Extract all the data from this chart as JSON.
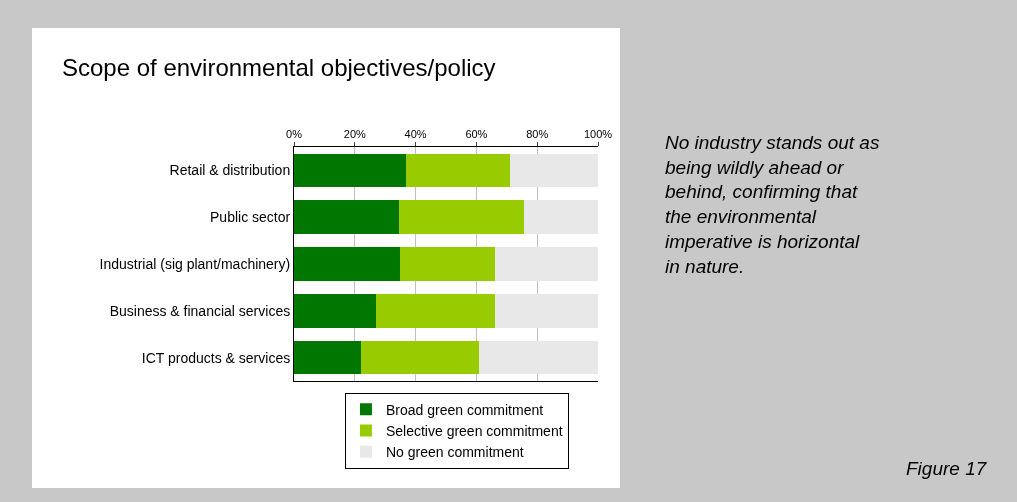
{
  "chart_data": {
    "type": "bar",
    "orientation": "horizontal",
    "stacked": true,
    "title": "Scope of environmental objectives/policy",
    "categories": [
      "Retail & distribution",
      "Public sector",
      "Industrial (sig plant/machinery)",
      "Business & financial services",
      "ICT products & services"
    ],
    "series": [
      {
        "name": "Broad green commitment",
        "color": "#007800",
        "values": [
          37,
          34.5,
          35,
          27,
          22
        ]
      },
      {
        "name": "Selective green commitment",
        "color": "#99cc00",
        "values": [
          34,
          41,
          31,
          39,
          39
        ]
      },
      {
        "name": "No green commitment",
        "color": "#e8e8e8",
        "values": [
          29,
          24.5,
          34,
          34,
          39
        ]
      }
    ],
    "xlim": [
      0,
      100
    ],
    "xticks": [
      {
        "value": 0,
        "label": "0%"
      },
      {
        "value": 20,
        "label": "20%"
      },
      {
        "value": 40,
        "label": "40%"
      },
      {
        "value": 60,
        "label": "60%"
      },
      {
        "value": 80,
        "label": "80%"
      },
      {
        "value": 100,
        "label": "100%"
      }
    ],
    "grid": "x",
    "legend": "bottom",
    "annotations": [
      "No industry stands out as being wildly ahead or behind, confirming that the environmental imperative is horizontal in nature.",
      "Figure 17"
    ]
  }
}
